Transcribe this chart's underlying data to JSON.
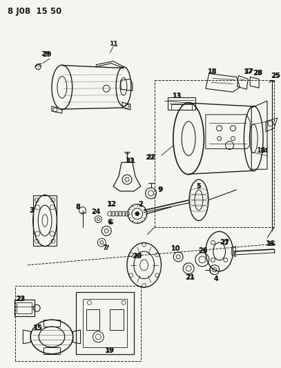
{
  "title_text": "8 J08  15 50",
  "bg": "#f5f5f0",
  "lc": "#1a1a1a",
  "fig_width": 4.07,
  "fig_height": 5.33,
  "dpi": 100
}
